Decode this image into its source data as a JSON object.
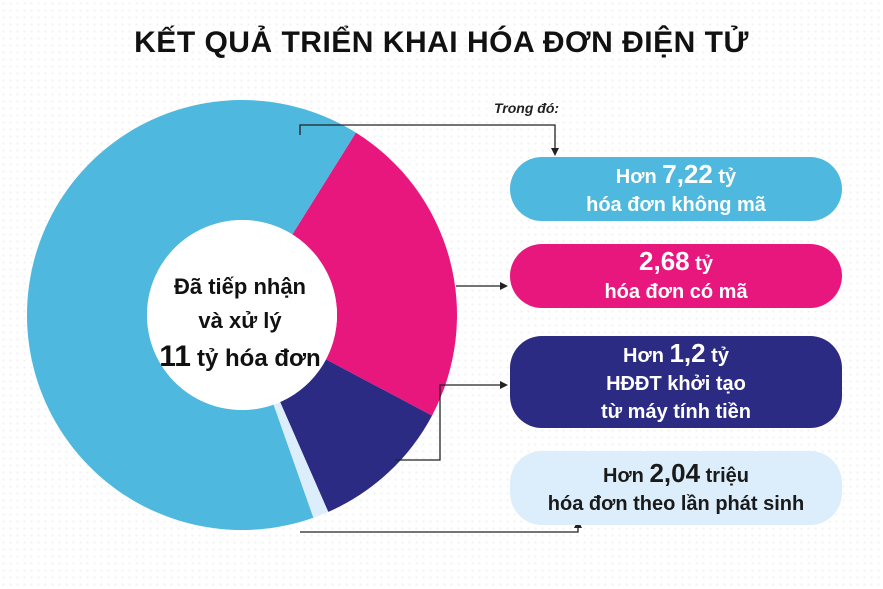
{
  "title": "KẾT QUẢ TRIỂN KHAI HÓA ĐƠN ĐIỆN TỬ",
  "note": "Trong đó:",
  "center": {
    "line1": "Đã tiếp nhận",
    "line2": "và xử lý",
    "total_num": "11",
    "total_rest": "tỷ hóa đơn"
  },
  "callouts": [
    {
      "prefix": "Hơn ",
      "value": "7,22",
      "unit": " tỷ",
      "line2": "hóa đơn không mã",
      "line3": ""
    },
    {
      "prefix": "",
      "value": "2,68",
      "unit": " tỷ",
      "line2": "hóa đơn có mã",
      "line3": ""
    },
    {
      "prefix": "Hơn ",
      "value": "1,2",
      "unit": " tỷ",
      "line2": "HĐĐT khởi tạo",
      "line3": "từ máy tính tiền"
    },
    {
      "prefix": "Hơn ",
      "value": "2,04",
      "unit": " triệu",
      "line2": "hóa đơn theo lần phát sinh",
      "line3": ""
    }
  ],
  "colors": {
    "khong_ma": "#4eb8de",
    "co_ma": "#e8177e",
    "may_tinh_tien": "#2c2b84",
    "lan_phat_sinh": "#dceefb"
  },
  "chart_data": {
    "type": "pie",
    "title": "KẾT QUẢ TRIỂN KHAI HÓA ĐƠN ĐIỆN TỬ",
    "total": 11,
    "unit": "tỷ hóa đơn",
    "slices": [
      {
        "label": "hóa đơn không mã",
        "value": 7.22,
        "color": "#4eb8de"
      },
      {
        "label": "hóa đơn có mã",
        "value": 2.68,
        "color": "#e8177e"
      },
      {
        "label": "HĐĐT khởi tạo từ máy tính tiền",
        "value": 1.2,
        "color": "#2c2b84"
      },
      {
        "label": "hóa đơn theo lần phát sinh",
        "value": 0.00204,
        "color": "#dceefb"
      }
    ]
  }
}
